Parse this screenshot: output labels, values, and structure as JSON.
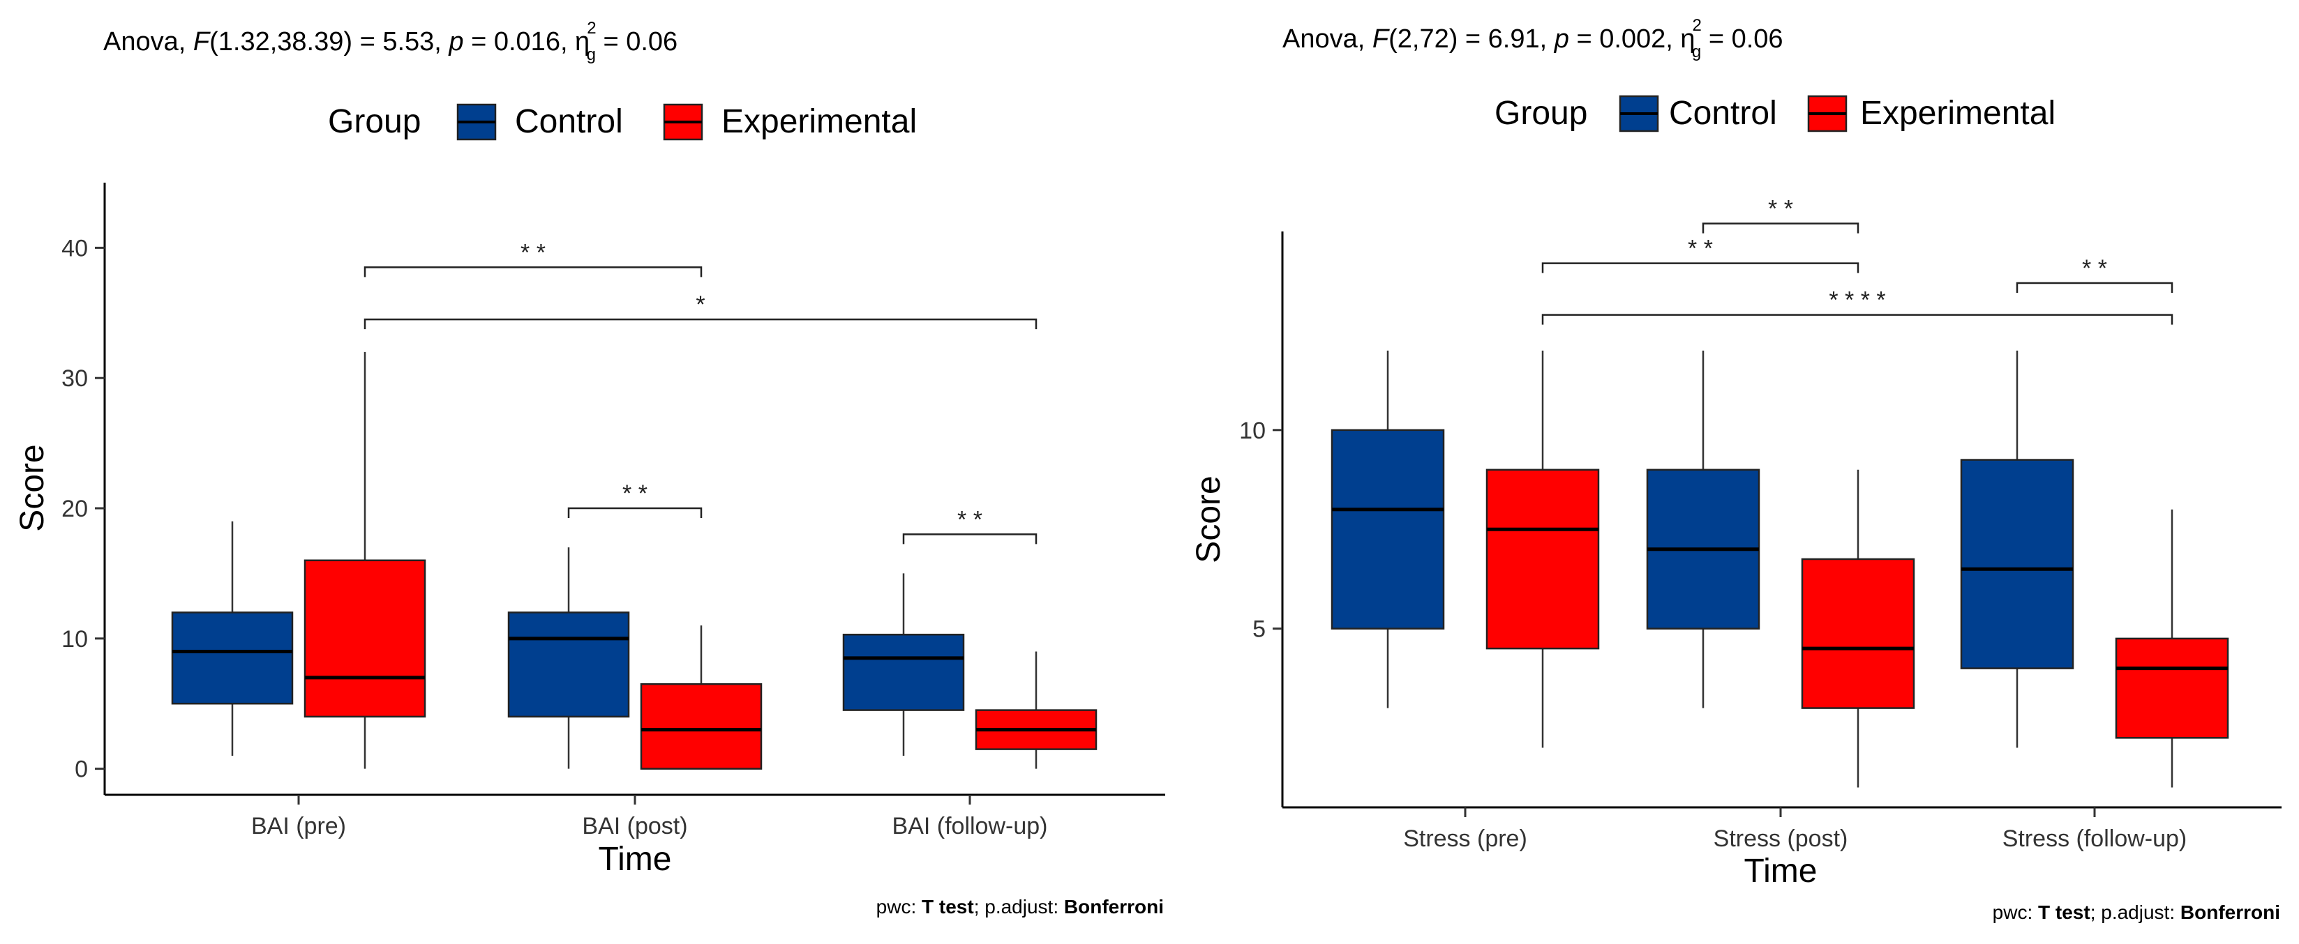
{
  "chart_data": [
    {
      "type": "boxplot",
      "subtitle": {
        "prefix": "Anova, ",
        "F_symbol": "F",
        "F_args": "(1.32,38.39) = 5.53, ",
        "p_symbol": "p",
        "p_text": " = 0.016, η",
        "eta_sup": "2",
        "eta_sub": "g",
        "eta_text": " = 0.06"
      },
      "legend": {
        "title": "Group",
        "position": "top",
        "items": [
          {
            "label": "Control",
            "color": "#003F8F"
          },
          {
            "label": "Experimental",
            "color": "#FF0000"
          }
        ]
      },
      "xlabel": "Time",
      "ylabel": "Score",
      "ylim": [
        -2,
        45
      ],
      "yticks": [
        0,
        10,
        20,
        30,
        40
      ],
      "categories": [
        "BAI (pre)",
        "BAI (post)",
        "BAI (follow-up)"
      ],
      "series": [
        {
          "name": "Control",
          "color": "#003F8F",
          "boxes": [
            {
              "min": 1,
              "q1": 5,
              "median": 9,
              "q3": 12,
              "max": 19
            },
            {
              "min": 0,
              "q1": 4,
              "median": 10,
              "q3": 12,
              "max": 17
            },
            {
              "min": 1,
              "q1": 4.5,
              "median": 8.5,
              "q3": 10.3,
              "max": 15
            }
          ]
        },
        {
          "name": "Experimental",
          "color": "#FF0000",
          "boxes": [
            {
              "min": 0,
              "q1": 4,
              "median": 7,
              "q3": 16,
              "max": 32
            },
            {
              "min": 0,
              "q1": 0,
              "median": 3,
              "q3": 6.5,
              "max": 11
            },
            {
              "min": 0,
              "q1": 1.5,
              "median": 3,
              "q3": 4.5,
              "max": 9
            }
          ]
        }
      ],
      "significance": [
        {
          "from": {
            "category": 0,
            "group": 1
          },
          "to": {
            "category": 1,
            "group": 1
          },
          "y": 38.5,
          "label": "* *"
        },
        {
          "from": {
            "category": 0,
            "group": 1
          },
          "to": {
            "category": 2,
            "group": 1
          },
          "y": 34.5,
          "label": "*"
        },
        {
          "from": {
            "category": 1,
            "group": 0
          },
          "to": {
            "category": 1,
            "group": 1
          },
          "y": 20,
          "label": "* *"
        },
        {
          "from": {
            "category": 2,
            "group": 0
          },
          "to": {
            "category": 2,
            "group": 1
          },
          "y": 18,
          "label": "* *"
        }
      ],
      "caption": {
        "pwc": "pwc: ",
        "test": "T test",
        "sep": "; p.adjust: ",
        "method": "Bonferroni"
      }
    },
    {
      "type": "boxplot",
      "subtitle": {
        "prefix": "Anova, ",
        "F_symbol": "F",
        "F_args": "(2,72) = 6.91, ",
        "p_symbol": "p",
        "p_text": " = 0.002, η",
        "eta_sup": "2",
        "eta_sub": "g",
        "eta_text": " = 0.06"
      },
      "legend": {
        "title": "Group",
        "position": "top",
        "items": [
          {
            "label": "Control",
            "color": "#003F8F"
          },
          {
            "label": "Experimental",
            "color": "#FF0000"
          }
        ]
      },
      "xlabel": "Time",
      "ylabel": "Score",
      "ylim": [
        0.5,
        15
      ],
      "yticks": [
        5,
        10
      ],
      "categories": [
        "Stress (pre)",
        "Stress (post)",
        "Stress (follow-up)"
      ],
      "series": [
        {
          "name": "Control",
          "color": "#003F8F",
          "boxes": [
            {
              "min": 3,
              "q1": 5,
              "median": 8,
              "q3": 10,
              "max": 12
            },
            {
              "min": 3,
              "q1": 5,
              "median": 7,
              "q3": 9,
              "max": 12
            },
            {
              "min": 2,
              "q1": 4,
              "median": 6.5,
              "q3": 9.25,
              "max": 12
            }
          ]
        },
        {
          "name": "Experimental",
          "color": "#FF0000",
          "boxes": [
            {
              "min": 2,
              "q1": 4.5,
              "median": 7.5,
              "q3": 9,
              "max": 12
            },
            {
              "min": 1,
              "q1": 3,
              "median": 4.5,
              "q3": 6.75,
              "max": 9
            },
            {
              "min": 1,
              "q1": 2.25,
              "median": 4,
              "q3": 4.75,
              "max": 8
            }
          ]
        }
      ],
      "significance": [
        {
          "from": {
            "category": 1,
            "group": 0
          },
          "to": {
            "category": 1,
            "group": 1
          },
          "y": 15.2,
          "label": "* *"
        },
        {
          "from": {
            "category": 0,
            "group": 1
          },
          "to": {
            "category": 1,
            "group": 1
          },
          "y": 14.2,
          "label": "* *"
        },
        {
          "from": {
            "category": 2,
            "group": 0
          },
          "to": {
            "category": 2,
            "group": 1
          },
          "y": 13.7,
          "label": "* *"
        },
        {
          "from": {
            "category": 0,
            "group": 1
          },
          "to": {
            "category": 2,
            "group": 1
          },
          "y": 12.9,
          "label": "* * * *"
        }
      ],
      "caption": {
        "pwc": "pwc: ",
        "test": "T test",
        "sep": "; p.adjust: ",
        "method": "Bonferroni"
      }
    }
  ]
}
